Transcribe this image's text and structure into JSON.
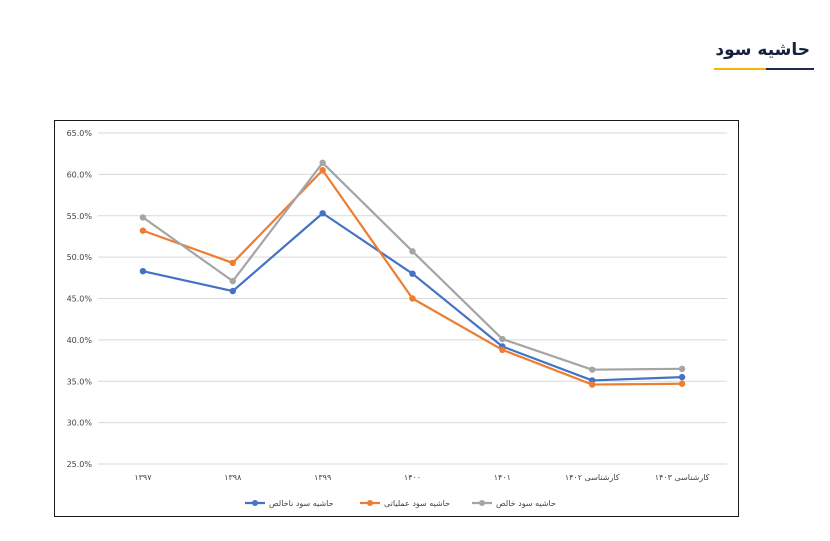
{
  "header": {
    "title": "حاشیه سود"
  },
  "colors": {
    "blue": "#4472c4",
    "orange": "#ed7d31",
    "gray": "#a5a5a5"
  },
  "chart_data": {
    "type": "line",
    "title": "",
    "xlabel": "",
    "ylabel": "",
    "categories": [
      "۱۳۹۷",
      "۱۳۹۸",
      "۱۳۹۹",
      "۱۴۰۰",
      "۱۴۰۱",
      "کارشناسی ۱۴۰۲",
      "کارشناسی ۱۴۰۳"
    ],
    "ylim": [
      25,
      65
    ],
    "yticks": [
      25,
      30,
      35,
      40,
      45,
      50,
      55,
      60,
      65
    ],
    "ytick_labels": [
      "25.0%",
      "30.0%",
      "35.0%",
      "40.0%",
      "45.0%",
      "50.0%",
      "55.0%",
      "60.0%",
      "65.0%"
    ],
    "grid": true,
    "legend_position": "bottom",
    "series": [
      {
        "name": "حاشیه سود ناخالص",
        "color": "#4472c4",
        "values": [
          48.3,
          45.9,
          55.3,
          48.0,
          39.2,
          35.1,
          35.5
        ]
      },
      {
        "name": "حاشیه سود عملیاتی",
        "color": "#ed7d31",
        "values": [
          53.2,
          49.3,
          60.5,
          45.0,
          38.8,
          34.6,
          34.7
        ]
      },
      {
        "name": "حاشیه سود خالص",
        "color": "#a5a5a5",
        "values": [
          54.8,
          47.1,
          61.4,
          50.7,
          40.1,
          36.4,
          36.5
        ]
      }
    ]
  }
}
